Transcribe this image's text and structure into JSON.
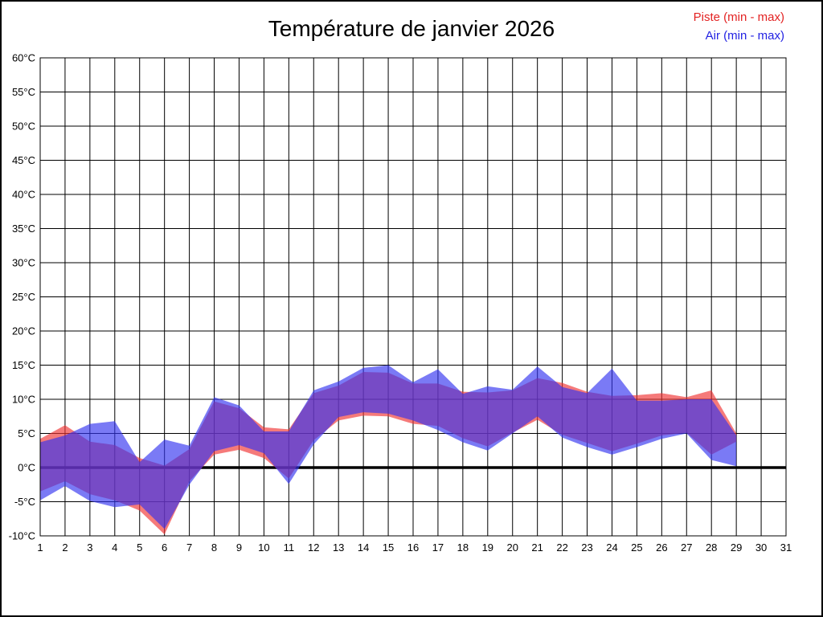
{
  "title": "Température de janvier 2026",
  "legend": {
    "piste": {
      "label": "Piste (min - max)",
      "color": "#e32222"
    },
    "air": {
      "label": "Air (min - max)",
      "color": "#2222e3"
    }
  },
  "chart_data": {
    "type": "area",
    "title": "Température de janvier 2026",
    "xlabel": "",
    "ylabel": "",
    "x_ticks": [
      1,
      2,
      3,
      4,
      5,
      6,
      7,
      8,
      9,
      10,
      11,
      12,
      13,
      14,
      15,
      16,
      17,
      18,
      19,
      20,
      21,
      22,
      23,
      24,
      25,
      26,
      27,
      28,
      29,
      30,
      31
    ],
    "xlim": [
      1,
      31
    ],
    "y_tick_values": [
      60,
      55,
      50,
      45,
      40,
      35,
      30,
      25,
      20,
      15,
      10,
      5,
      0,
      -5,
      -10
    ],
    "y_tick_labels": [
      "60°C",
      "55°C",
      "50°C",
      "45°C",
      "40°C",
      "35°C",
      "30°C",
      "25°C",
      "20°C",
      "15°C",
      "10°C",
      "5°C",
      "0°C",
      "-5°C",
      "-10°C"
    ],
    "ylim": [
      -10,
      60
    ],
    "grid": true,
    "zero_line": {
      "value": 0,
      "color": "#000000",
      "width": 3.5
    },
    "legend_position": "top-right",
    "days": [
      1,
      2,
      3,
      4,
      5,
      6,
      7,
      8,
      9,
      10,
      11,
      12,
      13,
      14,
      15,
      16,
      17,
      18,
      19,
      20,
      21,
      22,
      23,
      24,
      25,
      26,
      27,
      28,
      29
    ],
    "series": [
      {
        "name": "Piste (min - max)",
        "band": true,
        "fill": "#f03232",
        "opacity": 0.65,
        "min": [
          -3.5,
          -2.0,
          -3.9,
          -4.8,
          -6.3,
          -9.8,
          -2.0,
          1.9,
          2.6,
          1.4,
          -1.6,
          4.0,
          6.9,
          7.6,
          7.5,
          6.4,
          6.1,
          4.3,
          3.1,
          5.1,
          7.0,
          4.8,
          3.6,
          2.4,
          3.5,
          4.7,
          5.1,
          1.9,
          3.8
        ],
        "max": [
          4.2,
          6.2,
          3.8,
          3.3,
          1.4,
          0.3,
          2.7,
          9.7,
          8.7,
          5.9,
          5.6,
          10.9,
          12.0,
          14.0,
          13.9,
          12.3,
          12.3,
          11.1,
          11.0,
          11.3,
          13.1,
          12.4,
          11.1,
          10.5,
          10.6,
          10.9,
          10.3,
          11.3,
          5.0
        ]
      },
      {
        "name": "Air (min - max)",
        "band": true,
        "fill": "#3232f0",
        "opacity": 0.65,
        "min": [
          -4.8,
          -2.7,
          -4.9,
          -5.8,
          -5.4,
          -9.0,
          -2.5,
          2.4,
          3.3,
          2.1,
          -2.4,
          3.4,
          7.4,
          8.1,
          7.9,
          6.9,
          5.5,
          3.7,
          2.5,
          5.0,
          7.5,
          4.4,
          3.0,
          1.9,
          3.0,
          4.2,
          5.0,
          1.1,
          0.2
        ],
        "max": [
          3.7,
          4.7,
          6.4,
          6.8,
          0.8,
          4.1,
          3.2,
          10.3,
          9.1,
          5.3,
          5.3,
          11.3,
          12.6,
          14.6,
          15.0,
          12.5,
          14.4,
          10.8,
          11.9,
          11.4,
          14.8,
          11.8,
          10.9,
          14.5,
          9.8,
          9.8,
          10.0,
          10.0,
          4.7
        ]
      }
    ]
  }
}
